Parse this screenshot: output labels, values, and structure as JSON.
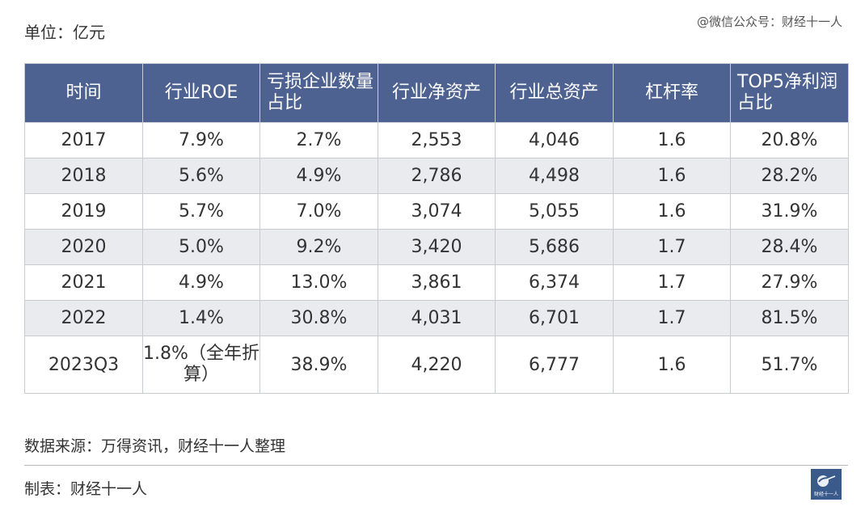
{
  "unit_label": "单位：亿元",
  "watermark": "@微信公众号：财经十一人",
  "table": {
    "headers": [
      "时间",
      "行业ROE",
      "亏损企业数量占比",
      "行业净资产",
      "行业总资产",
      "杠杆率",
      "TOP5净利润占比"
    ],
    "rows": [
      [
        "2017",
        "7.9%",
        "2.7%",
        "2,553",
        "4,046",
        "1.6",
        "20.8%"
      ],
      [
        "2018",
        "5.6%",
        "4.9%",
        "2,786",
        "4,498",
        "1.6",
        "28.2%"
      ],
      [
        "2019",
        "5.7%",
        "7.0%",
        "3,074",
        "5,055",
        "1.6",
        "31.9%"
      ],
      [
        "2020",
        "5.0%",
        "9.2%",
        "3,420",
        "5,686",
        "1.7",
        "28.4%"
      ],
      [
        "2021",
        "4.9%",
        "13.0%",
        "3,861",
        "6,374",
        "1.7",
        "27.9%"
      ],
      [
        "2022",
        "1.4%",
        "30.8%",
        "4,031",
        "6,701",
        "1.7",
        "81.5%"
      ],
      [
        "2023Q3",
        "1.8%（全年折算）",
        "38.9%",
        "4,220",
        "6,777",
        "1.6",
        "51.7%"
      ]
    ]
  },
  "source": "数据来源：万得资讯，财经十一人整理",
  "maker": "制表：财经十一人",
  "logo": {
    "icon": "caijing-logo-icon",
    "text": "财经十一人",
    "color": "#3a5a8c"
  },
  "colors": {
    "header_bg": "#4e6291",
    "alt_row_bg": "#e9ebef"
  }
}
